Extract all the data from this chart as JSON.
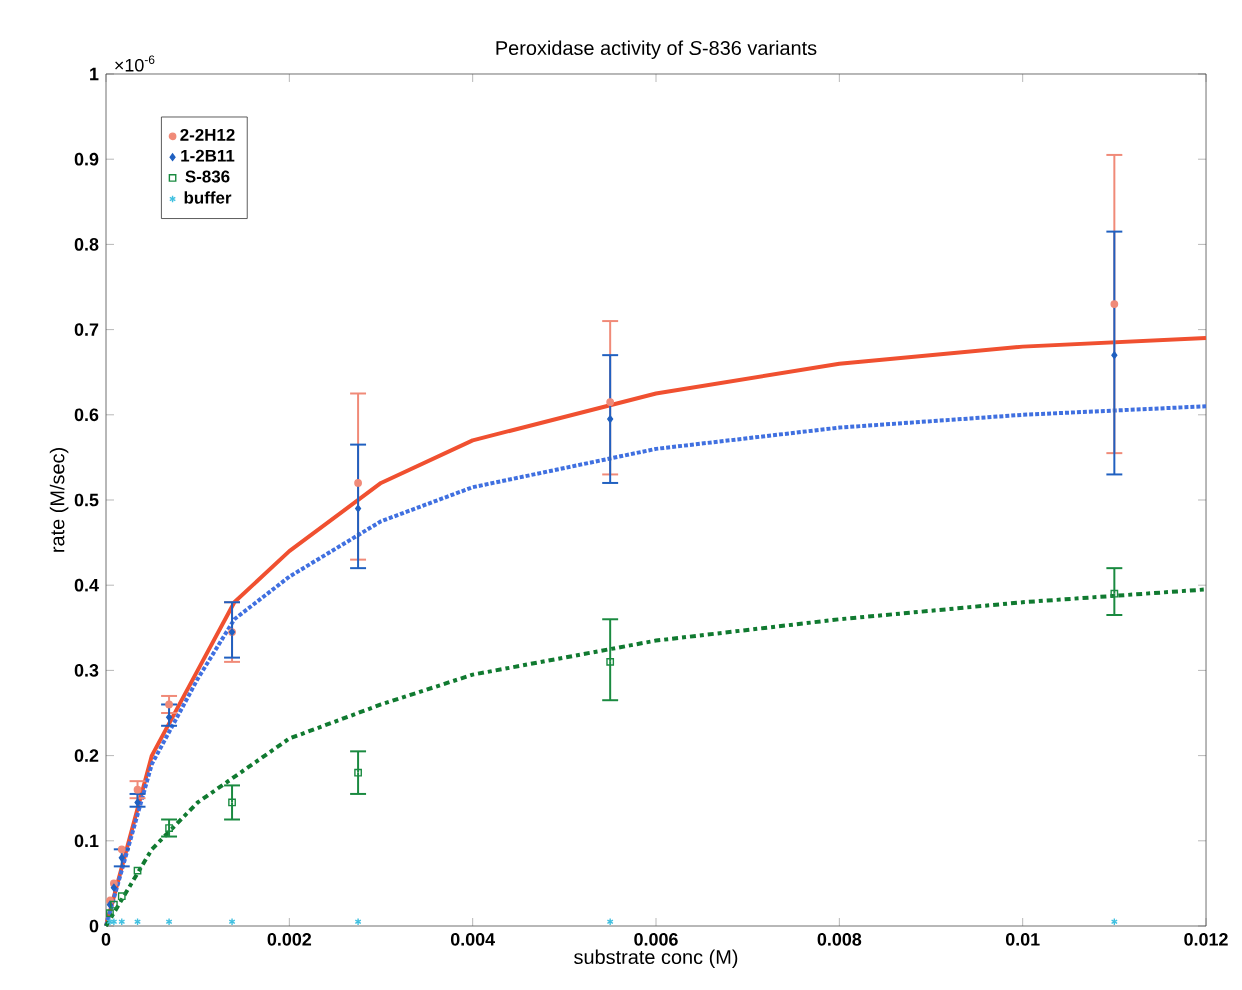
{
  "chart_data": {
    "type": "scatter",
    "title": "Peroxidase activity of *S*-836 variants",
    "xlabel": "substrate conc (M)",
    "ylabel": "rate (M/sec)",
    "annotations": [
      "×10$^{-6}$"
    ],
    "xlim": [
      0,
      0.012
    ],
    "ylim": [
      0,
      1
    ],
    "xticks": [
      0,
      0.002,
      0.004,
      0.006,
      0.008,
      0.01,
      0.012
    ],
    "yticks": [
      0,
      0.1,
      0.2,
      0.3,
      0.4,
      0.5,
      0.6,
      0.7,
      0.8,
      0.9,
      1
    ],
    "grid": false,
    "legend": "top left",
    "series": [
      {
        "name": "2-2H12",
        "marker": "circle",
        "color": "#f08a78",
        "x": [
          4.3e-05,
          8.6e-05,
          0.000172,
          0.000344,
          0.000688,
          0.001375,
          0.00275,
          0.0055,
          0.011
        ],
        "values": [
          0.03,
          0.05,
          0.09,
          0.16,
          0.26,
          0.345,
          0.52,
          0.615,
          0.73
        ],
        "errors": [
          null,
          null,
          null,
          0.01,
          0.01,
          [
            0.31,
            0.38
          ],
          [
            0.43,
            0.625
          ],
          [
            0.53,
            0.71
          ],
          [
            0.555,
            0.905
          ]
        ]
      },
      {
        "name": "1-2B11",
        "marker": "diamond",
        "color": "#2060c0",
        "x": [
          4.3e-05,
          8.6e-05,
          0.000172,
          0.000344,
          0.000688,
          0.001375,
          0.00275,
          0.0055,
          0.011
        ],
        "values": [
          0.025,
          0.045,
          0.08,
          0.145,
          0.245,
          0.345,
          0.49,
          0.595,
          0.67
        ],
        "errors": [
          null,
          null,
          0.01,
          [
            0.14,
            0.155
          ],
          [
            0.235,
            0.26
          ],
          [
            0.315,
            0.38
          ],
          [
            0.42,
            0.565
          ],
          [
            0.52,
            0.67
          ],
          [
            0.53,
            0.815
          ]
        ]
      },
      {
        "name": "S-836",
        "marker": "square",
        "color": "#1a8a40",
        "x": [
          4.3e-05,
          8.6e-05,
          0.000172,
          0.000344,
          0.000688,
          0.001375,
          0.00275,
          0.0055,
          0.011
        ],
        "values": [
          0.015,
          0.025,
          0.035,
          0.065,
          0.115,
          0.145,
          0.18,
          0.31,
          0.39
        ],
        "errors": [
          null,
          null,
          null,
          null,
          [
            0.105,
            0.125
          ],
          [
            0.125,
            0.165
          ],
          [
            0.155,
            0.205
          ],
          [
            0.265,
            0.36
          ],
          [
            0.365,
            0.42
          ]
        ]
      },
      {
        "name": "buffer",
        "marker": "cross",
        "color": "#40c0e0",
        "x": [
          4.3e-05,
          8.6e-05,
          0.000172,
          0.000344,
          0.000688,
          0.001375,
          0.00275,
          0.0055,
          0.011
        ],
        "values": [
          0.005,
          0.005,
          0.005,
          0.005,
          0.005,
          0.005,
          0.005,
          0.005,
          0.005
        ]
      },
      {
        "type": "line",
        "line_style": "solid",
        "color": "#f05030",
        "x": [
          0,
          0.0005,
          0.001,
          0.0014,
          0.002,
          0.003,
          0.004,
          0.006,
          0.008,
          0.01,
          0.012
        ],
        "values": [
          0,
          0.2,
          0.3,
          0.38,
          0.44,
          0.52,
          0.57,
          0.625,
          0.66,
          0.68,
          0.69
        ]
      },
      {
        "type": "line",
        "line_style": "dotted",
        "color": "#4070e0",
        "x": [
          0,
          0.0005,
          0.001,
          0.0014,
          0.002,
          0.003,
          0.004,
          0.006,
          0.008,
          0.01,
          0.012
        ],
        "values": [
          0,
          0.19,
          0.29,
          0.36,
          0.41,
          0.475,
          0.515,
          0.56,
          0.585,
          0.6,
          0.61
        ]
      },
      {
        "type": "line",
        "line_style": "dashdot",
        "color": "#107a30",
        "x": [
          0,
          0.0005,
          0.001,
          0.002,
          0.003,
          0.004,
          0.006,
          0.008,
          0.01,
          0.012
        ],
        "values": [
          0,
          0.09,
          0.145,
          0.22,
          0.26,
          0.295,
          0.335,
          0.36,
          0.38,
          0.395
        ]
      }
    ]
  }
}
